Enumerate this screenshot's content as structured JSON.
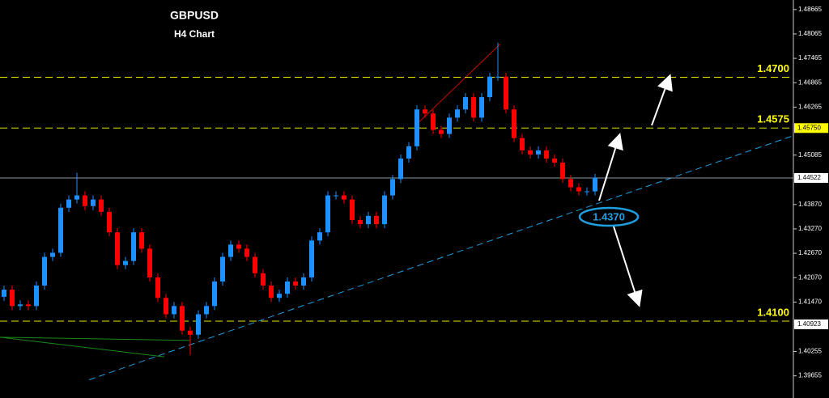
{
  "chart_data": {
    "type": "candlestick",
    "title": "GBPUSD",
    "subtitle": "H4 Chart",
    "background": "#000000",
    "up_color": "#1e90ff",
    "down_color": "#ff0000",
    "ylim": [
      1.3911,
      1.489
    ],
    "yticks": [
      1.48665,
      1.48065,
      1.47465,
      1.46865,
      1.46265,
      1.45085,
      {
        "value": 1.4387,
        "label": "1.43870"
      },
      {
        "value": 1.4327,
        "label": "1.43270"
      },
      {
        "value": 1.4267,
        "label": "1.42670"
      },
      {
        "value": 1.4207,
        "label": "1.42070"
      },
      {
        "value": 1.4147,
        "label": "1.41470"
      },
      1.40255,
      1.39655
    ],
    "open": [
      1.416,
      1.41775,
      1.41372,
      1.41412,
      1.41372,
      1.41876,
      1.42581,
      1.42682,
      1.4379,
      1.43992,
      1.44093,
      1.43831,
      1.43992,
      1.4369,
      1.43186,
      1.4238,
      1.4248,
      1.43186,
      1.42783,
      1.42077,
      1.41573,
      1.4117,
      1.41372,
      1.40767,
      1.40667,
      1.4117,
      1.41372,
      1.41976,
      1.42581,
      1.42883,
      1.42783,
      1.42581,
      1.42178,
      1.41876,
      1.41573,
      1.41674,
      1.41976,
      1.41876,
      1.42077,
      1.42984,
      1.43186,
      1.44093,
      1.44093,
      1.43992,
      1.43488,
      1.43387,
      1.43589,
      1.43387,
      1.44093,
      1.44496,
      1.44999,
      1.45302,
      1.46209,
      1.46108,
      1.45705,
      1.45604,
      1.46007,
      1.46209,
      1.46511,
      1.46007,
      1.46511,
      1.47015,
      1.47015,
      1.46209,
      1.45503,
      1.45201,
      1.451,
      1.45201,
      1.44999,
      1.44899,
      1.44496,
      1.44294,
      1.44193,
      1.44193
    ],
    "high": [
      1.41875,
      1.41875,
      1.41512,
      1.41512,
      1.41976,
      1.42681,
      1.42782,
      1.4389,
      1.44092,
      1.4465,
      1.44193,
      1.44092,
      1.44092,
      1.4379,
      1.43286,
      1.4258,
      1.43286,
      1.43286,
      1.42883,
      1.42177,
      1.41673,
      1.41472,
      1.41472,
      1.40867,
      1.4127,
      1.41472,
      1.42076,
      1.42681,
      1.42983,
      1.42983,
      1.42883,
      1.42681,
      1.42278,
      1.41976,
      1.41774,
      1.42076,
      1.42076,
      1.42177,
      1.43084,
      1.43286,
      1.44193,
      1.44193,
      1.44193,
      1.44092,
      1.43588,
      1.43689,
      1.43689,
      1.44193,
      1.44596,
      1.45099,
      1.45402,
      1.46309,
      1.46309,
      1.46208,
      1.45805,
      1.46107,
      1.46309,
      1.46611,
      1.46611,
      1.46611,
      1.47115,
      1.4785,
      1.47115,
      1.46309,
      1.45603,
      1.45301,
      1.45301,
      1.45301,
      1.45099,
      1.44999,
      1.44596,
      1.44394,
      1.44293,
      1.44622
    ],
    "low": [
      1.415,
      1.41272,
      1.41272,
      1.41272,
      1.41272,
      1.41776,
      1.42481,
      1.42582,
      1.4369,
      1.43892,
      1.43731,
      1.43731,
      1.4359,
      1.43086,
      1.4228,
      1.4228,
      1.4238,
      1.42683,
      1.41977,
      1.41473,
      1.4107,
      1.4107,
      1.40667,
      1.40163,
      1.40567,
      1.4107,
      1.41272,
      1.41876,
      1.42481,
      1.42683,
      1.42481,
      1.42078,
      1.41776,
      1.41473,
      1.41473,
      1.41574,
      1.41776,
      1.41776,
      1.41977,
      1.42884,
      1.43086,
      1.43993,
      1.43892,
      1.43388,
      1.43287,
      1.43287,
      1.43287,
      1.43287,
      1.43993,
      1.44396,
      1.44899,
      1.45202,
      1.46008,
      1.45605,
      1.45504,
      1.45504,
      1.45907,
      1.46109,
      1.45907,
      1.45907,
      1.46411,
      1.46915,
      1.46109,
      1.45403,
      1.45101,
      1.45,
      1.45,
      1.44899,
      1.44799,
      1.44396,
      1.44194,
      1.44093,
      1.44093,
      1.44093
    ],
    "close": [
      1.41775,
      1.41372,
      1.41412,
      1.41372,
      1.41876,
      1.42581,
      1.42682,
      1.4379,
      1.43992,
      1.44093,
      1.43831,
      1.43992,
      1.4369,
      1.43186,
      1.4238,
      1.4248,
      1.43186,
      1.42783,
      1.42077,
      1.41573,
      1.4117,
      1.41372,
      1.40767,
      1.40667,
      1.4117,
      1.41372,
      1.41976,
      1.42581,
      1.42883,
      1.42783,
      1.42581,
      1.42178,
      1.41876,
      1.41573,
      1.41674,
      1.41976,
      1.41876,
      1.42077,
      1.42984,
      1.43186,
      1.44093,
      1.44093,
      1.43992,
      1.43488,
      1.43387,
      1.43589,
      1.43387,
      1.44093,
      1.44496,
      1.44999,
      1.45302,
      1.46209,
      1.46108,
      1.45705,
      1.45604,
      1.46007,
      1.46209,
      1.46511,
      1.46007,
      1.46511,
      1.47015,
      1.47015,
      1.46209,
      1.45503,
      1.45201,
      1.451,
      1.45201,
      1.44999,
      1.44899,
      1.44496,
      1.44294,
      1.44193,
      1.44193,
      1.44522
    ],
    "levels": [
      {
        "value": 1.47,
        "label": "1.4700"
      },
      {
        "value": 1.4575,
        "label": "1.4575",
        "axis_label": "1.45750"
      },
      {
        "value": 1.41,
        "label": "1.4100"
      }
    ],
    "price_markers": [
      1.44522,
      1.40923
    ],
    "trendlines": [
      {
        "x": [
          10.5,
          97.5
        ],
        "y": [
          1.39558,
          1.45564
        ],
        "color": "#1e9fe0",
        "dashed": true
      },
      {
        "x": [
          51.3,
          61.3
        ],
        "y": [
          1.45906,
          1.47821
        ],
        "color": "#cc0000",
        "dashed": false
      },
      {
        "x": [
          -0.5,
          19.8
        ],
        "y": [
          1.40606,
          1.40123
        ],
        "color": "#1a8a1a",
        "dashed": false
      },
      {
        "x": [
          -0.5,
          23
        ],
        "y": [
          1.40606,
          1.40526
        ],
        "color": "#1a8a1a",
        "dashed": false
      }
    ],
    "annotation": "1.4370"
  }
}
